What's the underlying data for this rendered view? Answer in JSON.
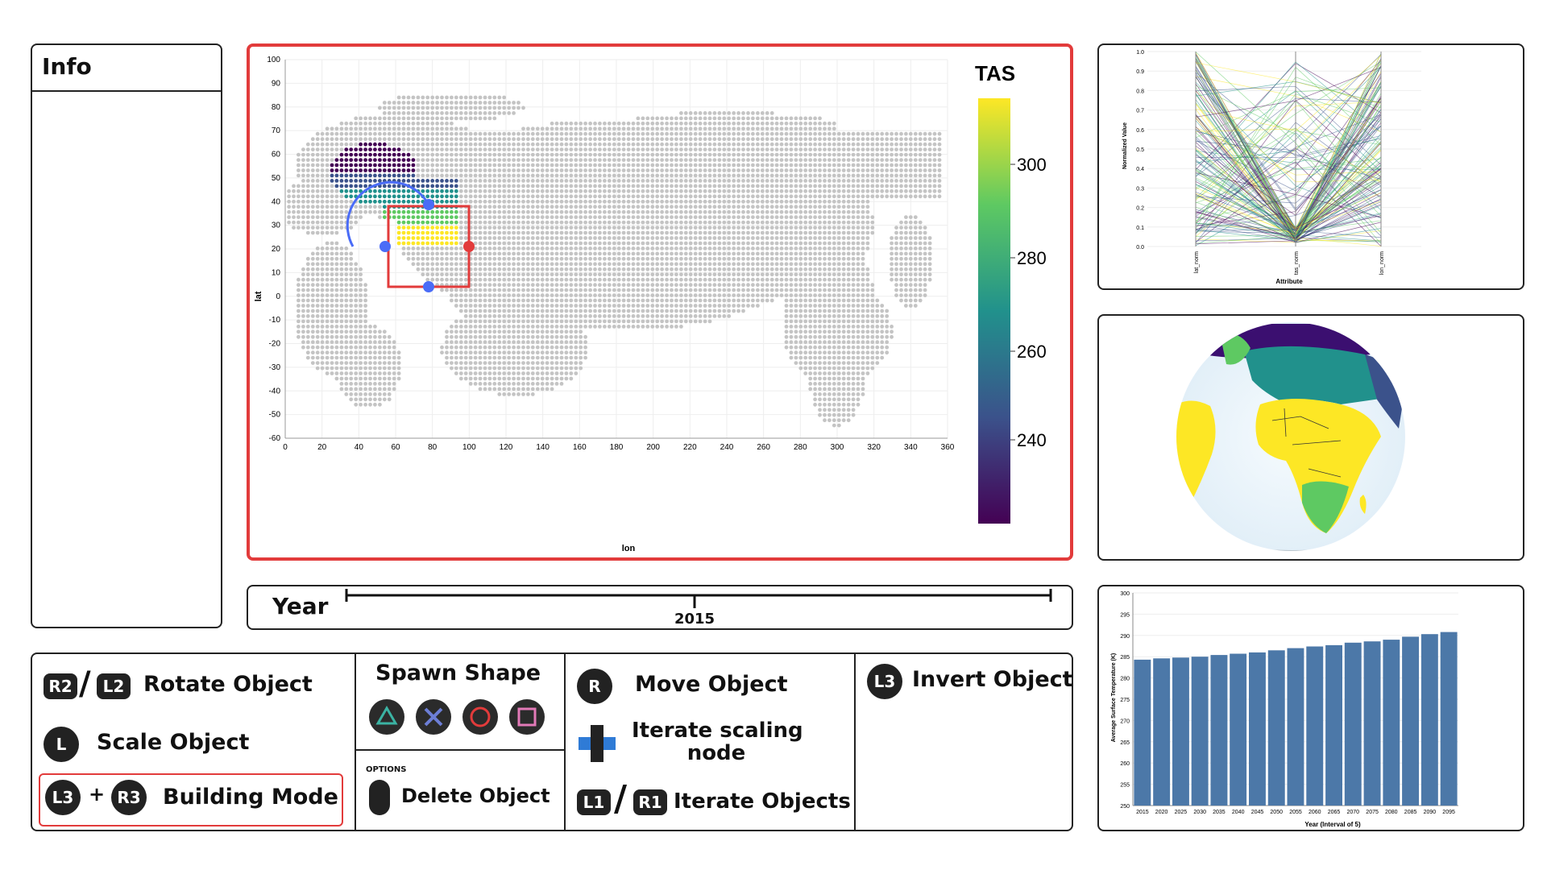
{
  "info": {
    "title": "Info"
  },
  "map": {
    "legend_title": "TAS",
    "legend_ticks": [
      "300",
      "280",
      "260",
      "240"
    ],
    "x_axis_label": "lon",
    "y_axis_label": "lat",
    "x_ticks": [
      "0",
      "20",
      "40",
      "60",
      "80",
      "100",
      "120",
      "140",
      "160",
      "180",
      "200",
      "220",
      "240",
      "260",
      "280",
      "300",
      "320",
      "340",
      "360"
    ],
    "y_ticks": [
      "100",
      "90",
      "80",
      "70",
      "60",
      "50",
      "40",
      "30",
      "20",
      "10",
      "0",
      "-10",
      "-20",
      "-30",
      "-40",
      "-50",
      "-60"
    ],
    "colors": {
      "selection_box": "#e23b3b",
      "selection_circle": "#4a6cf7",
      "grid_dot": "#c4c4c4",
      "frame": "#e23b3b"
    }
  },
  "parallel": {
    "y_axis_label": "Normalized Value",
    "x_axis_label": "Attribute",
    "attributes": [
      "lat_norm",
      "tas_norm",
      "lon_norm"
    ],
    "y_ticks": [
      "1.0",
      "0.9",
      "0.8",
      "0.7",
      "0.6",
      "0.5",
      "0.4",
      "0.3",
      "0.2",
      "0.1",
      "0.0"
    ]
  },
  "globe": {
    "colors": {
      "ocean": "#eef6fb",
      "land_high": "#fde725",
      "land_mid": "#21918c",
      "land_low": "#3b0f70"
    }
  },
  "bar_chart": {
    "chart_data": {
      "type": "bar",
      "categories": [
        "2015",
        "2020",
        "2025",
        "2030",
        "2035",
        "2040",
        "2045",
        "2050",
        "2055",
        "2060",
        "2065",
        "2070",
        "2075",
        "2080",
        "2085",
        "2090",
        "2095"
      ],
      "values": [
        284.3,
        284.6,
        284.8,
        285.0,
        285.4,
        285.7,
        286.0,
        286.5,
        287.0,
        287.4,
        287.7,
        288.3,
        288.6,
        289.0,
        289.7,
        290.3,
        290.8
      ],
      "xlabel": "Year (Interval of 5)",
      "ylabel": "Average Surface Temperature (K)",
      "ylim": [
        250,
        300
      ],
      "yticks": [
        "300",
        "295",
        "290",
        "285",
        "280",
        "275",
        "270",
        "265",
        "260",
        "255",
        "250"
      ],
      "color": "#4c78a8"
    }
  },
  "year": {
    "label": "Year",
    "value": "2015"
  },
  "controls": {
    "rotate": {
      "btn_a": "R2",
      "btn_b": "L2",
      "label": "Rotate Object"
    },
    "scale": {
      "btn": "L",
      "label": "Scale Object"
    },
    "building": {
      "btn_a": "L3",
      "plus": "+",
      "btn_b": "R3",
      "label": "Building Mode"
    },
    "spawn": {
      "title": "Spawn Shape"
    },
    "delete": {
      "options_label": "OPTIONS",
      "label": "Delete Object"
    },
    "move": {
      "btn": "R",
      "label": "Move Object"
    },
    "iterate_scaling": {
      "label_line1": "Iterate scaling",
      "label_line2": "node"
    },
    "iterate_objects": {
      "btn_a": "L1",
      "btn_b": "R1",
      "label": "Iterate Objects"
    },
    "invert": {
      "btn": "L3",
      "label": "Invert Object"
    }
  }
}
